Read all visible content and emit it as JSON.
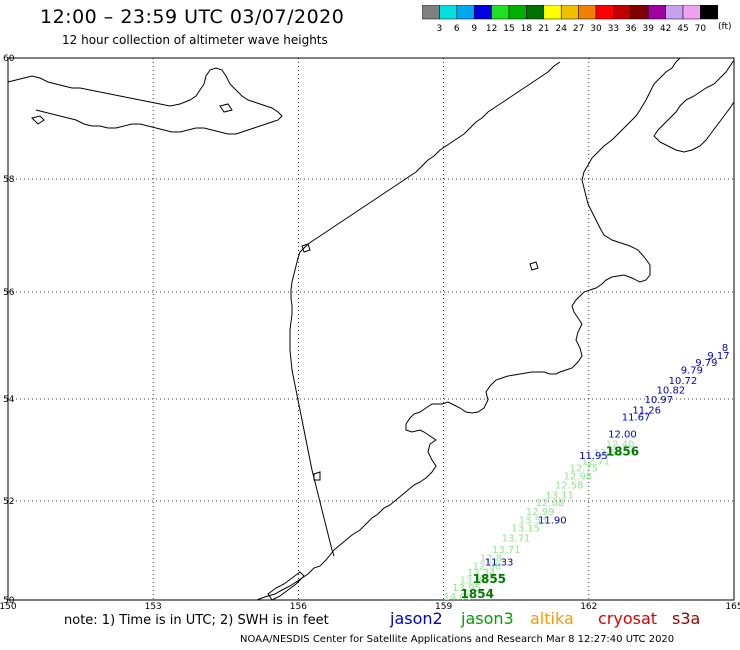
{
  "header": {
    "title": "12:00 – 23:59 UTC 03/07/2020",
    "subtitle": "12 hour collection of altimeter wave heights"
  },
  "legend": {
    "colors": [
      "#808080",
      "#00e0e0",
      "#00a8f0",
      "#0000e0",
      "#20e020",
      "#00b000",
      "#007000",
      "#ffff00",
      "#f0c000",
      "#f08000",
      "#ff0000",
      "#c00000",
      "#800000",
      "#a000a0",
      "#c8a0f0",
      "#f0a0f0",
      "#000000"
    ],
    "labels": [
      "3",
      "6",
      "9",
      "12",
      "15",
      "18",
      "21",
      "24",
      "27",
      "30",
      "33",
      "36",
      "39",
      "42",
      "45",
      "70"
    ],
    "unit": "(ft)"
  },
  "axes": {
    "lon_ticks": [
      "150",
      "153",
      "156",
      "159",
      "162",
      "165"
    ],
    "lat_ticks": [
      "60",
      "58",
      "56",
      "54",
      "52",
      "50"
    ]
  },
  "tracks": [
    {
      "mission": "jason3",
      "cycle": "1854",
      "color": "#90e890",
      "points": [
        {
          "lon": 159.0,
          "lat": 50.0,
          "swh": "14.08"
        },
        {
          "lon": 159.18,
          "lat": 50.18,
          "swh": "13.95"
        },
        {
          "lon": 159.33,
          "lat": 50.33,
          "swh": "13.81"
        },
        {
          "lon": 159.48,
          "lat": 50.48,
          "swh": "13.34"
        },
        {
          "lon": 159.6,
          "lat": 50.62,
          "swh": "12.98"
        },
        {
          "lon": 159.75,
          "lat": 50.78,
          "swh": "12.8"
        },
        {
          "lon": 160.0,
          "lat": 50.95,
          "swh": "13.71"
        },
        {
          "lon": 160.2,
          "lat": 51.18,
          "swh": "13.71"
        },
        {
          "lon": 160.4,
          "lat": 51.38,
          "swh": "13.15"
        },
        {
          "lon": 160.55,
          "lat": 51.55,
          "swh": "13.53"
        },
        {
          "lon": 160.7,
          "lat": 51.72,
          "swh": "12.99"
        },
        {
          "lon": 160.9,
          "lat": 51.9,
          "swh": "12.68"
        },
        {
          "lon": 161.1,
          "lat": 52.05,
          "swh": "13.11"
        },
        {
          "lon": 161.3,
          "lat": 52.25,
          "swh": "12.58"
        },
        {
          "lon": 161.48,
          "lat": 52.42,
          "swh": "12.98"
        },
        {
          "lon": 161.6,
          "lat": 52.58,
          "swh": "12.75"
        },
        {
          "lon": 161.85,
          "lat": 52.72,
          "swh": "12.71"
        },
        {
          "lon": 162.1,
          "lat": 52.88,
          "swh": "12.54"
        },
        {
          "lon": 162.35,
          "lat": 53.05,
          "swh": "12.40"
        }
      ]
    },
    {
      "mission": "jason2",
      "cycle": "1855",
      "color": "#0000c8",
      "points": [
        {
          "lon": 159.85,
          "lat": 50.7,
          "swh": "11.33"
        },
        {
          "lon": 160.95,
          "lat": 51.55,
          "swh": "11.90"
        },
        {
          "lon": 161.8,
          "lat": 52.82,
          "swh": "11.95"
        },
        {
          "lon": 162.4,
          "lat": 53.25,
          "swh": "12.00"
        },
        {
          "lon": 162.68,
          "lat": 53.58,
          "swh": "11.67"
        },
        {
          "lon": 162.9,
          "lat": 53.72,
          "swh": "11.26"
        },
        {
          "lon": 163.15,
          "lat": 53.92,
          "swh": "10.97"
        },
        {
          "lon": 163.4,
          "lat": 54.1,
          "swh": "10.82"
        },
        {
          "lon": 163.65,
          "lat": 54.28,
          "swh": "10.72"
        },
        {
          "lon": 163.9,
          "lat": 54.48,
          "swh": "9.79"
        },
        {
          "lon": 164.2,
          "lat": 54.62,
          "swh": "9.79"
        },
        {
          "lon": 164.45,
          "lat": 54.75,
          "swh": "9.17"
        },
        {
          "lon": 164.75,
          "lat": 54.9,
          "swh": "8"
        }
      ]
    }
  ],
  "cycle_labels": [
    {
      "text": "1854",
      "lon": 159.35,
      "lat": 50.0
    },
    {
      "text": "1855",
      "lon": 159.6,
      "lat": 50.3
    },
    {
      "text": "1856",
      "lon": 162.35,
      "lat": 52.85
    }
  ],
  "note": "note: 1) Time is in UTC; 2) SWH is in feet",
  "missions": [
    {
      "name": "jason2",
      "color": "#0000cc"
    },
    {
      "name": "jason3",
      "color": "#00a000"
    },
    {
      "name": "altika",
      "color": "#ff9900"
    },
    {
      "name": "cryosat",
      "color": "#dd0000"
    },
    {
      "name": "s3a",
      "color": "#990000"
    }
  ],
  "footer": "NOAA/NESDIS Center for Satellite Applications and Research   Mar  8 12:27:40 UTC 2020"
}
